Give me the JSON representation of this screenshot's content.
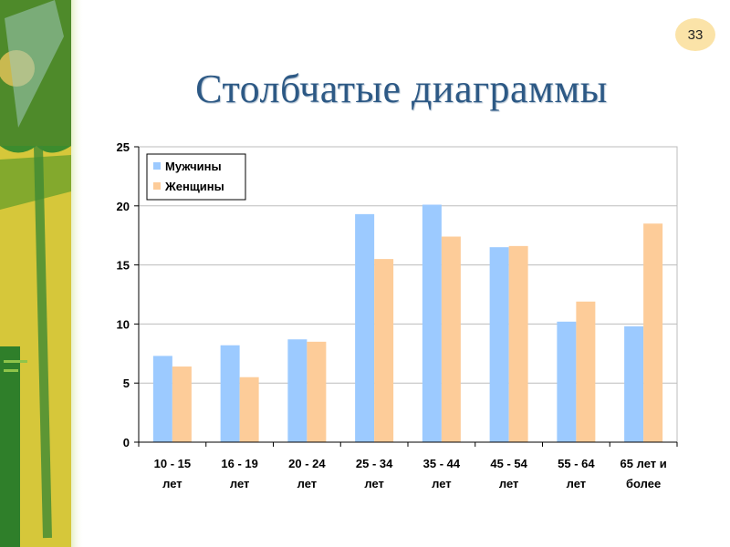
{
  "slide": {
    "number": "33",
    "title": "Столбчатые диаграммы"
  },
  "colors": {
    "men": "#9ccaff",
    "women": "#fdcc99",
    "grid": "#bdbdbd"
  },
  "chart_data": {
    "type": "bar",
    "title": "",
    "xlabel": "",
    "ylabel": "",
    "ylim": [
      0,
      25
    ],
    "yticks": [
      0,
      5,
      10,
      15,
      20,
      25
    ],
    "grid": true,
    "legend": "top-left",
    "categories": [
      [
        "10 - 15",
        "лет"
      ],
      [
        "16 - 19",
        "лет"
      ],
      [
        "20 - 24",
        "лет"
      ],
      [
        "25 - 34",
        "лет"
      ],
      [
        "35 - 44",
        "лет"
      ],
      [
        "45 - 54",
        "лет"
      ],
      [
        "55 - 64",
        "лет"
      ],
      [
        "65 лет и",
        "более"
      ]
    ],
    "series": [
      {
        "name": "Мужчины",
        "values": [
          7.3,
          8.2,
          8.7,
          19.3,
          20.1,
          16.5,
          10.2,
          9.8
        ]
      },
      {
        "name": "Женщины",
        "values": [
          6.4,
          5.5,
          8.5,
          15.5,
          17.4,
          16.6,
          11.9,
          18.5
        ]
      }
    ]
  }
}
